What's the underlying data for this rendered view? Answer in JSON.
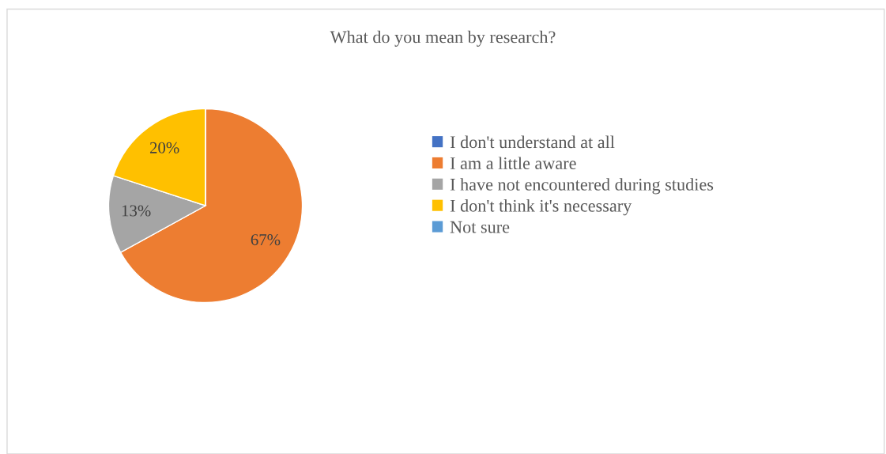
{
  "chart_data": {
    "type": "pie",
    "title": "What do you mean by research?",
    "categories": [
      "I don't understand at all",
      "I am a little aware",
      "I have not encountered during studies",
      "I don't think it's necessary",
      "Not sure"
    ],
    "values": [
      0,
      67,
      13,
      20,
      0
    ],
    "colors": [
      "#4472c4",
      "#ed7d31",
      "#a5a5a5",
      "#ffc000",
      "#5b9bd5"
    ],
    "value_labels": [
      null,
      "67%",
      "13%",
      "20%",
      null
    ],
    "legend": "right"
  }
}
